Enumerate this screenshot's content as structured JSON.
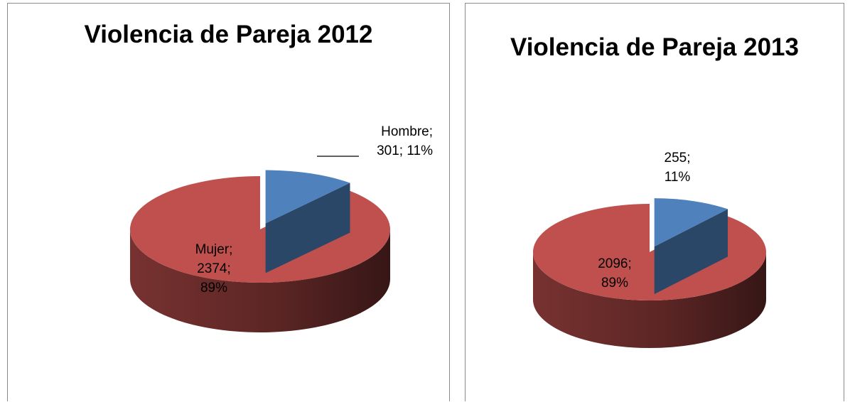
{
  "chart_data": [
    {
      "type": "pie",
      "title": "Violencia de Pareja 2012",
      "categories": [
        "Hombre",
        "Mujer"
      ],
      "values": [
        301,
        2374
      ],
      "percentages": [
        11,
        89
      ],
      "colors": [
        "#4F81BD",
        "#C0504D"
      ],
      "exploded": [
        true,
        false
      ],
      "labels": [
        {
          "lines": [
            "Hombre;",
            "301; 11%"
          ]
        },
        {
          "lines": [
            "Mujer;",
            "2374;",
            "89%"
          ]
        }
      ]
    },
    {
      "type": "pie",
      "title": "Violencia de Pareja 2013",
      "categories": [
        "",
        ""
      ],
      "values": [
        255,
        2096
      ],
      "percentages": [
        11,
        89
      ],
      "colors": [
        "#4F81BD",
        "#C0504D"
      ],
      "exploded": [
        true,
        false
      ],
      "labels": [
        {
          "lines": [
            "255;",
            "11%"
          ]
        },
        {
          "lines": [
            "2096;",
            "89%"
          ]
        }
      ]
    }
  ]
}
